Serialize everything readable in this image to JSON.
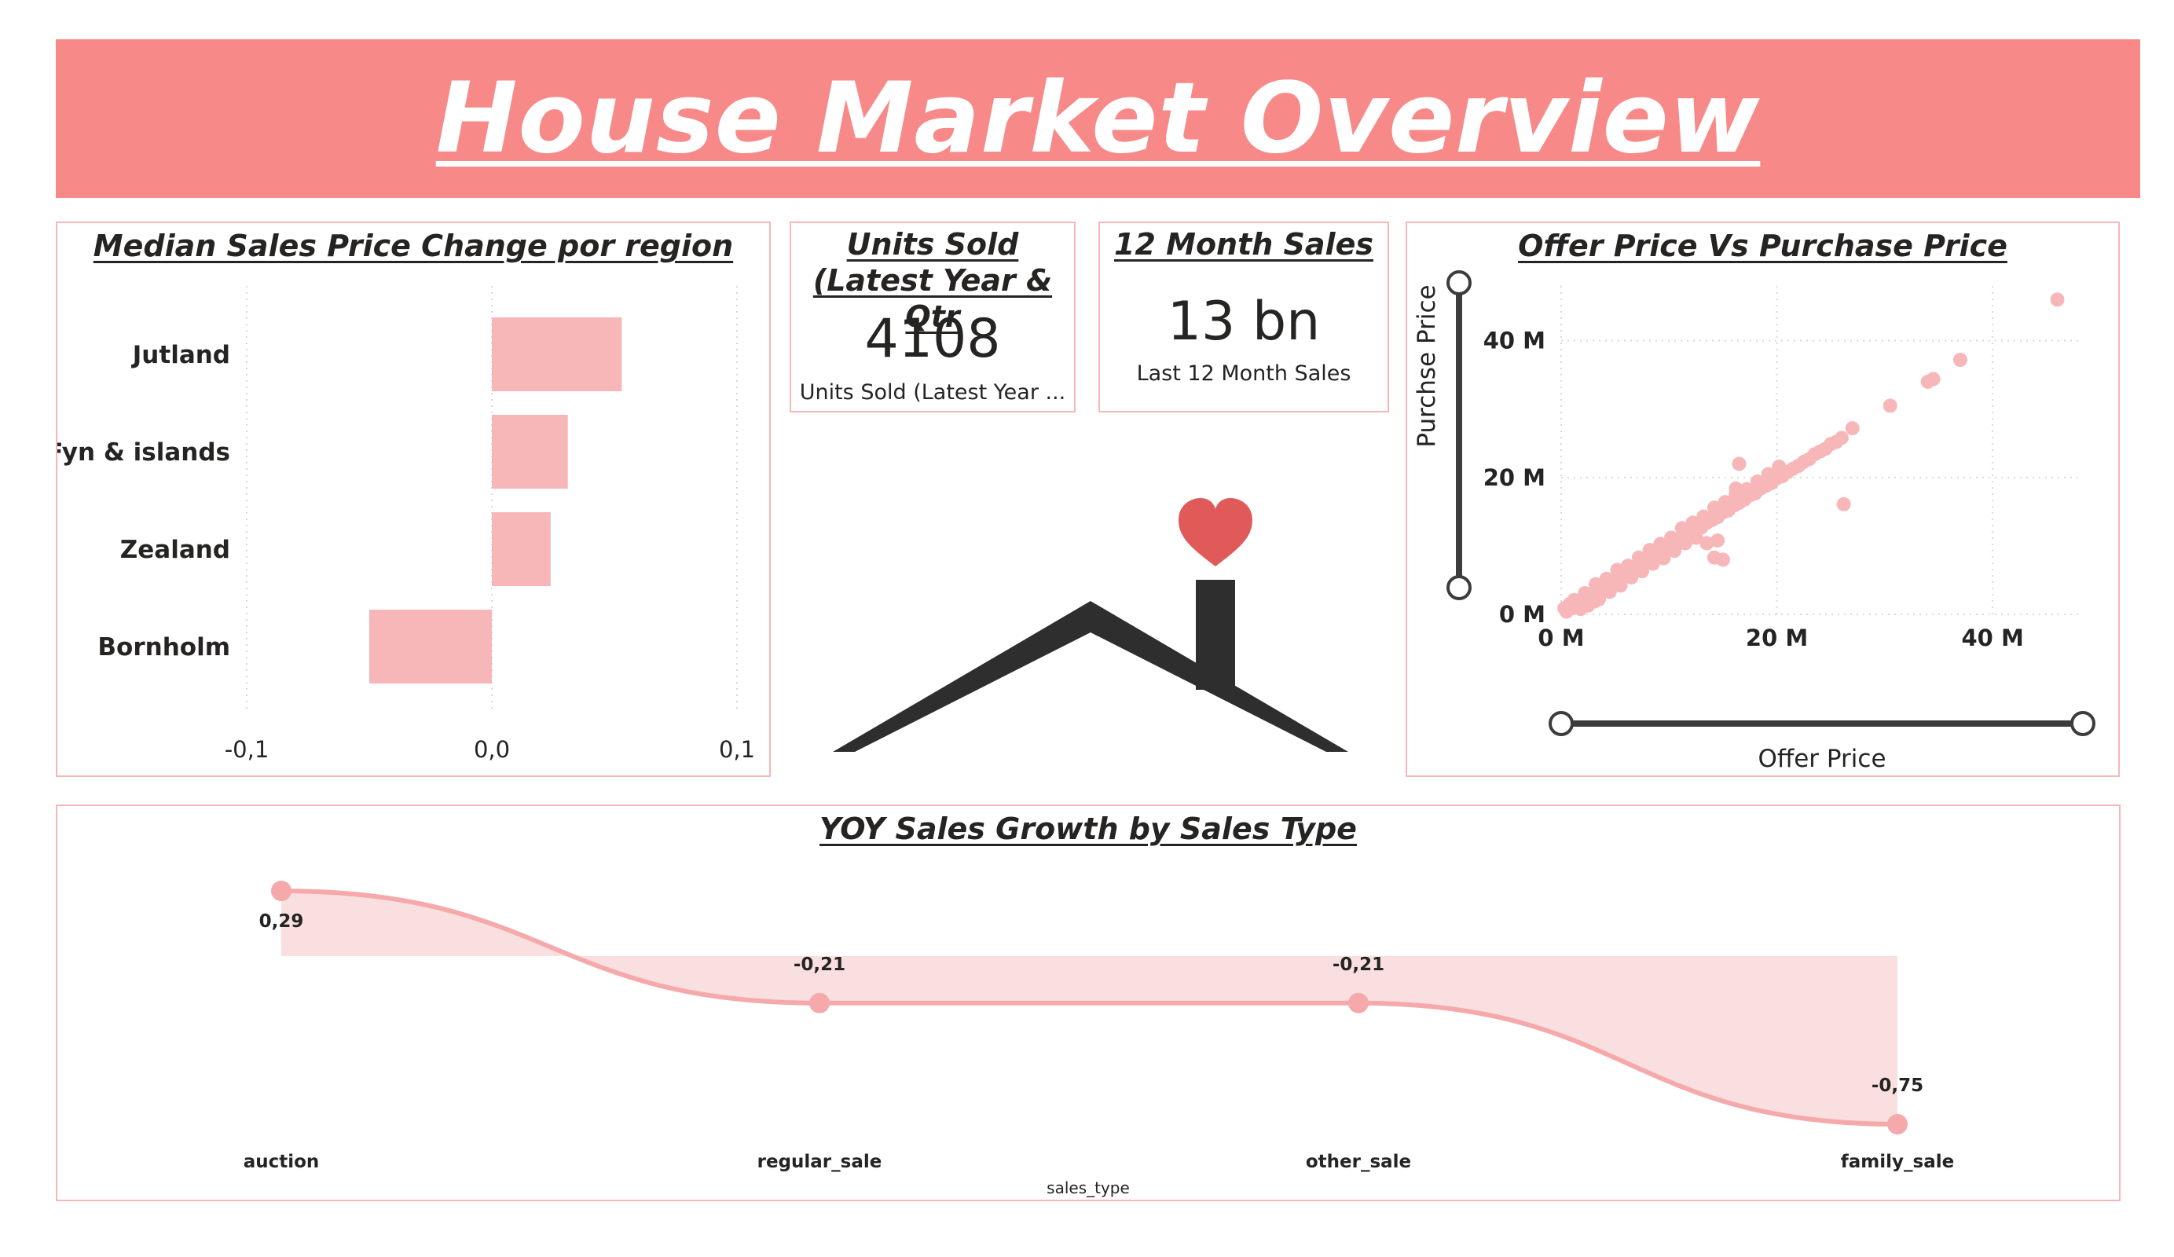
{
  "header": {
    "title": "House Market Overview"
  },
  "region_chart": {
    "title": "Median Sales Price Change por region",
    "chart_data": {
      "type": "bar",
      "orientation": "horizontal",
      "categories": [
        "Jutland",
        "Fyn & islands",
        "Zealand",
        "Bornholm"
      ],
      "values": [
        0.053,
        0.031,
        0.024,
        -0.05
      ],
      "xlim": [
        -0.1,
        0.1
      ],
      "xticks": [
        "-0,1",
        "0,0",
        "0,1"
      ],
      "grid": true,
      "bar_color": "#f7b7b8"
    }
  },
  "units_card": {
    "title": "Units Sold (Latest Year & Qtr",
    "value": "4108",
    "label": "Units Sold (Latest Year ..."
  },
  "sales_card": {
    "title": "12 Month Sales",
    "value": "13 bn",
    "label": "Last 12 Month Sales"
  },
  "scatter_chart": {
    "title": "Offer Price Vs Purchase Price",
    "chart_data": {
      "type": "scatter",
      "xlabel": "Offer Price",
      "ylabel": "Purchse Price",
      "xlim": [
        0,
        48
      ],
      "ylim": [
        0,
        48
      ],
      "xticks": [
        {
          "v": 0,
          "label": "0 M"
        },
        {
          "v": 20,
          "label": "20 M"
        },
        {
          "v": 40,
          "label": "40 M"
        }
      ],
      "yticks": [
        {
          "v": 0,
          "label": "0 M"
        },
        {
          "v": 20,
          "label": "20 M"
        },
        {
          "v": 40,
          "label": "40 M"
        }
      ],
      "points": [
        [
          0.5,
          0.4
        ],
        [
          1,
          0.9
        ],
        [
          1.5,
          1.3
        ],
        [
          2,
          1.8
        ],
        [
          2.5,
          2.4
        ],
        [
          3,
          2.7
        ],
        [
          3.5,
          3.4
        ],
        [
          4,
          3.8
        ],
        [
          4.5,
          4.2
        ],
        [
          5,
          4.9
        ],
        [
          5.5,
          5.2
        ],
        [
          6,
          5.9
        ],
        [
          6.5,
          6.3
        ],
        [
          7,
          6.8
        ],
        [
          7.5,
          7.4
        ],
        [
          8,
          7.7
        ],
        [
          8.5,
          8.4
        ],
        [
          9,
          8.8
        ],
        [
          9.5,
          9.2
        ],
        [
          10,
          9.9
        ],
        [
          10.5,
          10.2
        ],
        [
          11,
          10.9
        ],
        [
          11.5,
          11.3
        ],
        [
          12,
          11.8
        ],
        [
          12.5,
          12.4
        ],
        [
          13,
          12.7
        ],
        [
          13.5,
          13.4
        ],
        [
          14,
          13.8
        ],
        [
          14.5,
          14.2
        ],
        [
          15,
          14.9
        ],
        [
          15.5,
          15.2
        ],
        [
          16,
          15.9
        ],
        [
          16.5,
          16.3
        ],
        [
          17,
          16.8
        ],
        [
          17.5,
          17.4
        ],
        [
          18,
          17.7
        ],
        [
          18.5,
          18.4
        ],
        [
          19,
          18.8
        ],
        [
          19.5,
          19.2
        ],
        [
          20,
          19.9
        ],
        [
          20.5,
          20.2
        ],
        [
          21,
          20.8
        ],
        [
          21.5,
          21.3
        ],
        [
          22,
          21.7
        ],
        [
          22.5,
          22.3
        ],
        [
          23,
          22.7
        ],
        [
          23.5,
          23.4
        ],
        [
          24,
          23.8
        ],
        [
          24.5,
          24.2
        ],
        [
          25,
          24.9
        ],
        [
          25.5,
          25.2
        ],
        [
          26,
          25.8
        ],
        [
          27,
          27.2
        ],
        [
          1.2,
          2.1
        ],
        [
          2.2,
          3.1
        ],
        [
          3.2,
          4.4
        ],
        [
          4.2,
          5.2
        ],
        [
          5.2,
          6.5
        ],
        [
          6.2,
          7.1
        ],
        [
          7.2,
          8.3
        ],
        [
          8.2,
          9.4
        ],
        [
          9.2,
          10.3
        ],
        [
          10.2,
          11.2
        ],
        [
          11.2,
          12.6
        ],
        [
          12.2,
          13.4
        ],
        [
          13.2,
          14.3
        ],
        [
          14.2,
          15.6
        ],
        [
          15.2,
          16.4
        ],
        [
          16.2,
          17.5
        ],
        [
          17.2,
          18.3
        ],
        [
          18.2,
          19.4
        ],
        [
          19.2,
          20.5
        ],
        [
          20.2,
          21.6
        ],
        [
          2.5,
          1.3
        ],
        [
          3.5,
          2.2
        ],
        [
          4.5,
          3.3
        ],
        [
          5.5,
          4.2
        ],
        [
          6.5,
          5.4
        ],
        [
          7.5,
          6.3
        ],
        [
          8.5,
          7.4
        ],
        [
          9.5,
          8.2
        ],
        [
          10.5,
          9.3
        ],
        [
          11.5,
          10.4
        ],
        [
          12.5,
          11.2
        ],
        [
          1.8,
          0.8
        ],
        [
          3.1,
          1.9
        ],
        [
          13.5,
          10.4
        ],
        [
          14.5,
          10.8
        ],
        [
          15,
          8.0
        ],
        [
          14.2,
          8.3
        ],
        [
          16.5,
          22.0
        ],
        [
          16.2,
          18.4
        ],
        [
          26.2,
          16.1
        ],
        [
          30.5,
          30.5
        ],
        [
          34,
          34.0
        ],
        [
          34.5,
          34.4
        ],
        [
          37,
          37.2
        ],
        [
          46,
          46.0
        ],
        [
          0.8,
          1.5
        ],
        [
          0.3,
          0.9
        ]
      ],
      "point_color": "#f7b7b8"
    }
  },
  "yoy_chart": {
    "title": "YOY Sales Growth by Sales Type",
    "chart_data": {
      "type": "area",
      "xlabel": "sales_type",
      "categories": [
        "auction",
        "regular_sale",
        "other_sale",
        "family_sale"
      ],
      "values": [
        0.29,
        -0.21,
        -0.21,
        -0.75
      ],
      "data_labels": [
        "0,29",
        "-0,21",
        "-0,21",
        "-0,75"
      ],
      "ylim": [
        -0.75,
        0.29
      ],
      "line_color": "#f5a9ab",
      "fill_color": "#f9dfe0"
    }
  },
  "colors": {
    "banner": "#f78a88",
    "heart": "#e05a5a",
    "house": "#2e2e2e",
    "slider": "#3c3c3c"
  }
}
